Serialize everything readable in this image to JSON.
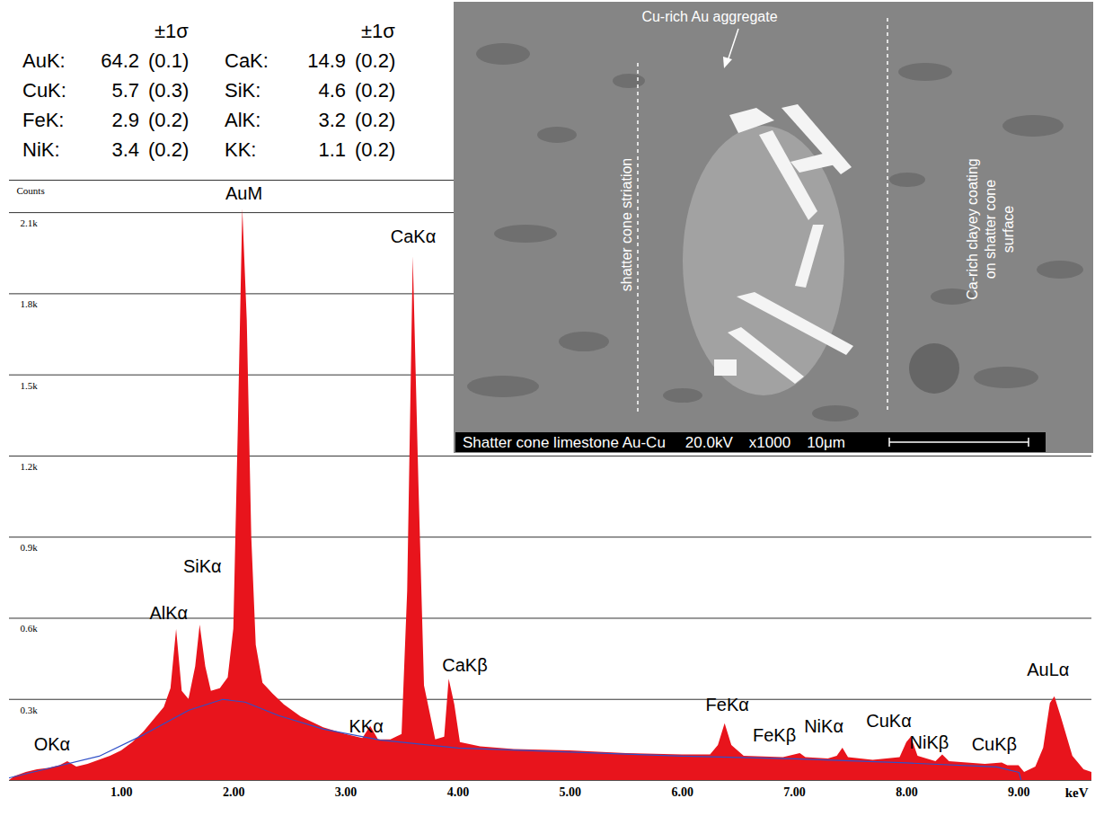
{
  "chart_data": {
    "type": "area",
    "xlabel": "keV",
    "ylabel": "Counts",
    "color": "#e8141c",
    "grid": true,
    "xlim": [
      0,
      9.65
    ],
    "ylim": [
      0,
      2220
    ],
    "xticks": [
      {
        "value": 1,
        "label": "1.00"
      },
      {
        "value": 2,
        "label": "2.00"
      },
      {
        "value": 3,
        "label": "3.00"
      },
      {
        "value": 4,
        "label": "4.00"
      },
      {
        "value": 5,
        "label": "5.00"
      },
      {
        "value": 6,
        "label": "6.00"
      },
      {
        "value": 7,
        "label": "7.00"
      },
      {
        "value": 8,
        "label": "8.00"
      },
      {
        "value": 9,
        "label": "9.00"
      }
    ],
    "yticks": [
      {
        "value": 300,
        "label": "0.3k"
      },
      {
        "value": 600,
        "label": "0.6k"
      },
      {
        "value": 900,
        "label": "0.9k"
      },
      {
        "value": 1200,
        "label": "1.2k"
      },
      {
        "value": 1500,
        "label": "1.5k"
      },
      {
        "value": 1800,
        "label": "1.8k"
      },
      {
        "value": 2100,
        "label": "2.1k"
      }
    ],
    "x": [
      0,
      0.05,
      0.15,
      0.25,
      0.35,
      0.45,
      0.52,
      0.6,
      0.7,
      0.8,
      0.9,
      1.0,
      1.1,
      1.2,
      1.3,
      1.38,
      1.44,
      1.49,
      1.54,
      1.6,
      1.66,
      1.7,
      1.75,
      1.8,
      1.88,
      1.95,
      2.0,
      2.04,
      2.08,
      2.12,
      2.16,
      2.2,
      2.26,
      2.35,
      2.45,
      2.6,
      2.8,
      3.0,
      3.15,
      3.22,
      3.29,
      3.4,
      3.5,
      3.55,
      3.6,
      3.65,
      3.7,
      3.8,
      3.88,
      3.92,
      3.97,
      4.02,
      4.2,
      4.5,
      5.0,
      5.5,
      6.0,
      6.25,
      6.32,
      6.38,
      6.44,
      6.55,
      6.9,
      7.0,
      7.05,
      7.1,
      7.3,
      7.38,
      7.43,
      7.48,
      7.7,
      7.94,
      8.0,
      8.04,
      8.1,
      8.26,
      8.32,
      8.38,
      8.7,
      8.85,
      8.9,
      9.0,
      9.05,
      9.15,
      9.22,
      9.28,
      9.32,
      9.38,
      9.48,
      9.58,
      9.65
    ],
    "values": [
      0,
      15,
      30,
      40,
      45,
      55,
      70,
      50,
      60,
      75,
      90,
      110,
      140,
      180,
      230,
      270,
      340,
      558,
      330,
      300,
      420,
      575,
      420,
      330,
      340,
      380,
      560,
      1300,
      2113,
      1700,
      900,
      500,
      360,
      320,
      280,
      235,
      195,
      170,
      155,
      200,
      150,
      150,
      170,
      700,
      1937,
      1100,
      350,
      150,
      160,
      375,
      280,
      140,
      125,
      115,
      110,
      100,
      95,
      95,
      130,
      210,
      130,
      90,
      85,
      95,
      100,
      85,
      80,
      90,
      120,
      85,
      75,
      85,
      140,
      160,
      90,
      70,
      95,
      70,
      60,
      65,
      55,
      55,
      30,
      50,
      120,
      285,
      310,
      230,
      90,
      40,
      30
    ],
    "background": {
      "color": "#3050c8",
      "x": [
        0,
        0.3,
        0.8,
        1.2,
        1.6,
        1.9,
        2.1,
        2.4,
        2.8,
        3.3,
        4.0,
        5.0,
        6.0,
        7.0,
        8.0,
        8.8,
        9.0,
        9.02
      ],
      "values": [
        10,
        40,
        90,
        170,
        260,
        300,
        290,
        240,
        190,
        150,
        120,
        105,
        90,
        80,
        65,
        50,
        30,
        0
      ]
    },
    "annotations": [
      {
        "text": "OKα",
        "x": 0.38,
        "y": 133
      },
      {
        "text": "AlKα",
        "x": 1.42,
        "y": 618
      },
      {
        "text": "SiKα",
        "x": 1.72,
        "y": 791
      },
      {
        "text": "AuM",
        "x": 2.09,
        "y": 2170
      },
      {
        "text": "KKα",
        "x": 3.18,
        "y": 199
      },
      {
        "text": "CaKα",
        "x": 3.6,
        "y": 2010
      },
      {
        "text": "CaKβ",
        "x": 4.06,
        "y": 425
      },
      {
        "text": "FeKα",
        "x": 6.4,
        "y": 280
      },
      {
        "text": "FeKβ",
        "x": 6.82,
        "y": 166
      },
      {
        "text": "NiKα",
        "x": 7.26,
        "y": 199
      },
      {
        "text": "CuKα",
        "x": 7.84,
        "y": 219
      },
      {
        "text": "NiKβ",
        "x": 8.2,
        "y": 140
      },
      {
        "text": "CuKβ",
        "x": 8.78,
        "y": 133
      },
      {
        "text": "AuLα",
        "x": 9.26,
        "y": 409
      }
    ]
  },
  "quantification": {
    "header": "±1σ",
    "columns": [
      [
        {
          "label": "AuK:",
          "value": 64.2,
          "sigma": 0.1
        },
        {
          "label": "CuK:",
          "value": 5.7,
          "sigma": 0.3
        },
        {
          "label": "FeK:",
          "value": 2.9,
          "sigma": 0.2
        },
        {
          "label": "NiK:",
          "value": 3.4,
          "sigma": 0.2
        }
      ],
      [
        {
          "label": "CaK:",
          "value": 14.9,
          "sigma": 0.2
        },
        {
          "label": "SiK:",
          "value": 4.6,
          "sigma": 0.2
        },
        {
          "label": "AlK:",
          "value": 3.2,
          "sigma": 0.2
        },
        {
          "label": "KK:",
          "value": 1.1,
          "sigma": 0.2
        }
      ]
    ]
  },
  "inset": {
    "annotations": [
      "Cu-rich Au aggregate",
      "shatter cone striation",
      "Ca-rich clayey coating on shatter cone surface"
    ],
    "caption": [
      "Shatter cone limestone Au-Cu",
      "20.0kV",
      "x1000",
      "10μm"
    ]
  }
}
